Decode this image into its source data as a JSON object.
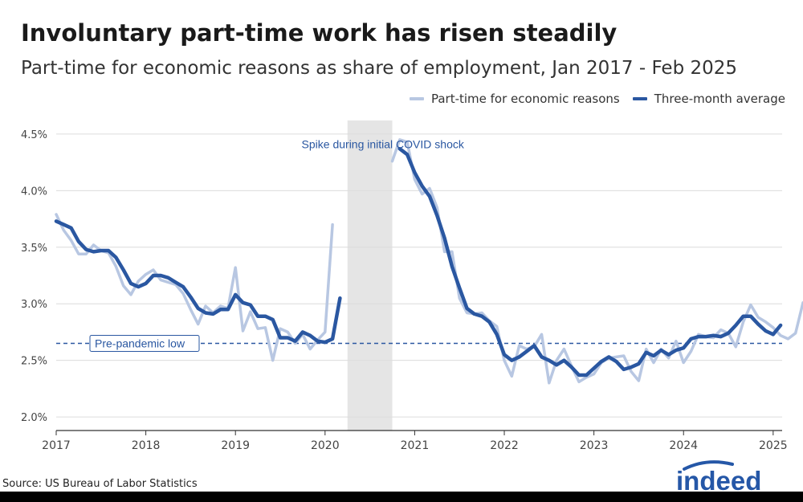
{
  "title": "Involuntary part-time work has risen steadily",
  "subtitle": "Part-time for economic reasons as share of employment, Jan 2017 - Feb 2025",
  "source": "Source: US Bureau of Labor Statistics",
  "brand": "indeed",
  "colors": {
    "raw": "#b8c7e2",
    "avg": "#2a57a1",
    "shade": "#e5e5e5",
    "grid": "#dcdcdc",
    "axis": "#333333"
  },
  "chart_data": {
    "type": "line",
    "title": "Involuntary part-time work has risen steadily",
    "subtitle": "Part-time for economic reasons as share of employment, Jan 2017 - Feb 2025",
    "xlabel": "",
    "ylabel": "",
    "ylim": [
      1.88,
      4.62
    ],
    "xlim": [
      2017.0,
      2025.1
    ],
    "yticks": [
      2.0,
      2.5,
      3.0,
      3.5,
      4.0,
      4.5
    ],
    "ytick_labels": [
      "2.0%",
      "2.5%",
      "3.0%",
      "3.5%",
      "4.0%",
      "4.5%"
    ],
    "xticks": [
      2017,
      2018,
      2019,
      2020,
      2021,
      2022,
      2023,
      2024,
      2025
    ],
    "xtick_labels": [
      "2017",
      "2018",
      "2019",
      "2020",
      "2021",
      "2022",
      "2023",
      "2024",
      "2025"
    ],
    "grid": true,
    "legend": "top-right",
    "shaded_period": {
      "x0": 2020.25,
      "x1": 2020.75
    },
    "reference_line": {
      "y": 2.65,
      "label": "Pre-pandemic low"
    },
    "annotation": {
      "text": "Spike during initial COVID shock",
      "x": 2020.25,
      "y": 3.78
    },
    "series": [
      {
        "name": "Part-time for economic reasons",
        "segments": [
          {
            "x_start": 2017.0,
            "step": 0.0833333,
            "values": [
              3.79,
              3.65,
              3.56,
              3.44,
              3.44,
              3.52,
              3.47,
              3.45,
              3.33,
              3.16,
              3.08,
              3.2,
              3.26,
              3.3,
              3.21,
              3.19,
              3.17,
              3.09,
              2.95,
              2.82,
              2.98,
              2.92,
              2.98,
              2.96,
              3.32,
              2.76,
              2.93,
              2.78,
              2.79,
              2.5,
              2.78,
              2.75,
              2.65,
              2.73,
              2.6,
              2.68,
              2.75,
              3.7
            ]
          },
          {
            "x_start": 2020.75,
            "step": 0.0833333,
            "values": [
              4.26,
              4.45,
              4.43,
              4.1,
              3.97,
              4.02,
              3.85,
              3.46,
              3.46,
              3.05,
              2.92,
              2.91,
              2.92,
              2.85,
              2.8,
              2.5,
              2.36,
              2.63,
              2.6,
              2.62,
              2.73,
              2.3,
              2.5,
              2.6,
              2.45,
              2.31,
              2.35,
              2.38,
              2.48,
              2.52,
              2.53,
              2.54,
              2.4,
              2.32,
              2.6,
              2.48,
              2.6,
              2.52,
              2.67,
              2.48,
              2.58,
              2.73,
              2.71,
              2.7,
              2.77,
              2.74,
              2.62,
              2.84,
              2.99,
              2.88,
              2.84,
              2.79,
              2.72,
              2.69,
              2.74,
              3.01
            ]
          }
        ]
      },
      {
        "name": "Three-month average",
        "segments": [
          {
            "x_start": 2017.0,
            "step": 0.0833333,
            "values": [
              3.73,
              3.7,
              3.67,
              3.55,
              3.48,
              3.46,
              3.47,
              3.47,
              3.41,
              3.3,
              3.18,
              3.15,
              3.18,
              3.25,
              3.25,
              3.23,
              3.19,
              3.15,
              3.06,
              2.96,
              2.92,
              2.91,
              2.95,
              2.95,
              3.08,
              3.01,
              2.99,
              2.89,
              2.89,
              2.86,
              2.7,
              2.7,
              2.67,
              2.75,
              2.72,
              2.67,
              2.66,
              2.69,
              3.05
            ]
          },
          {
            "x_start": 2020.8333,
            "step": 0.0833333,
            "values": [
              4.37,
              4.32,
              4.16,
              4.04,
              3.95,
              3.78,
              3.58,
              3.33,
              3.14,
              2.96,
              2.91,
              2.89,
              2.84,
              2.73,
              2.55,
              2.5,
              2.53,
              2.58,
              2.63,
              2.53,
              2.5,
              2.46,
              2.5,
              2.44,
              2.37,
              2.37,
              2.43,
              2.49,
              2.53,
              2.49,
              2.42,
              2.44,
              2.47,
              2.57,
              2.54,
              2.59,
              2.55,
              2.59,
              2.61,
              2.69,
              2.71,
              2.71,
              2.72,
              2.71,
              2.74,
              2.81,
              2.89,
              2.89,
              2.82,
              2.76,
              2.73,
              2.81
            ]
          }
        ]
      }
    ]
  }
}
